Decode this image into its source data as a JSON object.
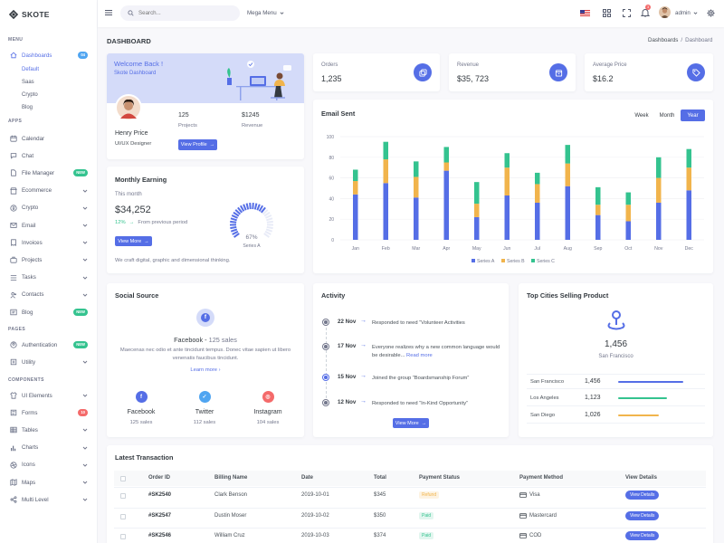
{
  "brand": {
    "name": "SKOTE"
  },
  "topbar": {
    "search_placeholder": "Search...",
    "mega_menu": "Mega Menu",
    "notification_count": "3",
    "user_name": "admin"
  },
  "sidebar": {
    "menu_title": "MENU",
    "apps_title": "APPS",
    "pages_title": "PAGES",
    "components_title": "COMPONENTS",
    "dashboards": {
      "label": "Dashboards",
      "badge": "04"
    },
    "dashboard_sub": [
      "Default",
      "Saas",
      "Crypto",
      "Blog"
    ],
    "apps": [
      {
        "label": "Calendar",
        "icon": "calendar-icon"
      },
      {
        "label": "Chat",
        "icon": "chat-icon"
      },
      {
        "label": "File Manager",
        "icon": "file-icon",
        "badge": "NEW"
      },
      {
        "label": "Ecommerce",
        "icon": "store-icon"
      },
      {
        "label": "Crypto",
        "icon": "bitcoin-icon"
      },
      {
        "label": "Email",
        "icon": "email-icon"
      },
      {
        "label": "Invoices",
        "icon": "invoice-icon"
      },
      {
        "label": "Projects",
        "icon": "briefcase-icon"
      },
      {
        "label": "Tasks",
        "icon": "tasks-icon"
      },
      {
        "label": "Contacts",
        "icon": "contacts-icon"
      },
      {
        "label": "Blog",
        "icon": "blog-icon",
        "badge": "NEW"
      }
    ],
    "pages": [
      {
        "label": "Authentication",
        "icon": "user-circle-icon",
        "badge": "NEW"
      },
      {
        "label": "Utility",
        "icon": "utility-icon"
      }
    ],
    "components": [
      {
        "label": "UI Elements",
        "icon": "tshirt-icon"
      },
      {
        "label": "Forms",
        "icon": "forms-icon",
        "badge": "10"
      },
      {
        "label": "Tables",
        "icon": "table-icon"
      },
      {
        "label": "Charts",
        "icon": "chart-icon"
      },
      {
        "label": "Icons",
        "icon": "aperture-icon"
      },
      {
        "label": "Maps",
        "icon": "map-icon"
      },
      {
        "label": "Multi Level",
        "icon": "share-icon"
      }
    ]
  },
  "page": {
    "title": "DASHBOARD",
    "breadcrumb": [
      "Dashboards",
      "Dashboard"
    ]
  },
  "welcome": {
    "heading": "Welcome Back !",
    "subheading": "Skote Dashboard",
    "name": "Henry Price",
    "role": "UI/UX Designer",
    "projects_value": "125",
    "projects_label": "Projects",
    "revenue_value": "$1245",
    "revenue_label": "Revenue",
    "button": "View Profile"
  },
  "monthly": {
    "title": "Monthly Earning",
    "this_month": "This month",
    "amount": "$34,252",
    "change": "12%",
    "from_prev": "From previous period",
    "button": "View More",
    "note": "We craft digital, graphic and dimensional thinking.",
    "gauge_value": "67%",
    "gauge_label": "Series A",
    "gauge_fraction": 0.67
  },
  "stats": [
    {
      "label": "Orders",
      "value": "1,235",
      "icon": "copy-icon"
    },
    {
      "label": "Revenue",
      "value": "$35, 723",
      "icon": "archive-icon"
    },
    {
      "label": "Average Price",
      "value": "$16.2",
      "icon": "tag-icon"
    }
  ],
  "email_chart": {
    "title": "Email Sent",
    "tabs": [
      "Week",
      "Month",
      "Year"
    ],
    "active_tab": "Year"
  },
  "chart_data": {
    "type": "bar",
    "stacked": true,
    "title": "Email Sent",
    "categories": [
      "Jan",
      "Feb",
      "Mar",
      "Apr",
      "May",
      "Jun",
      "Jul",
      "Aug",
      "Sep",
      "Oct",
      "Nov",
      "Dec"
    ],
    "series": [
      {
        "name": "Series A",
        "color": "#556ee6",
        "values": [
          44,
          55,
          41,
          67,
          22,
          43,
          36,
          52,
          24,
          18,
          36,
          48
        ]
      },
      {
        "name": "Series B",
        "color": "#f1b44c",
        "values": [
          13,
          23,
          20,
          8,
          13,
          27,
          18,
          22,
          10,
          16,
          24,
          22
        ]
      },
      {
        "name": "Series C",
        "color": "#34c38f",
        "values": [
          11,
          17,
          15,
          15,
          21,
          14,
          11,
          18,
          17,
          12,
          20,
          18
        ]
      }
    ],
    "y_ticks": [
      "0",
      "20",
      "40",
      "60",
      "80",
      "100"
    ],
    "ylim": [
      0,
      100
    ],
    "legend": "bottom-center"
  },
  "social": {
    "title": "Social Source",
    "heading": "Facebook",
    "heading_sales": "125 sales",
    "description": "Maecenas nec odio et ante tincidunt tempus. Donec vitae sapien ut libero venenatis faucibus tincidunt.",
    "learn_more": "Learn more",
    "items": [
      {
        "name": "Facebook",
        "sales": "125 sales",
        "color": "#556ee6"
      },
      {
        "name": "Twitter",
        "sales": "112 sales",
        "color": "#50a5f1"
      },
      {
        "name": "Instagram",
        "sales": "104 sales",
        "color": "#f46a6a"
      }
    ]
  },
  "activity": {
    "title": "Activity",
    "items": [
      {
        "date": "22 Nov",
        "text": "Responded to need “Volunteer Activities"
      },
      {
        "date": "17 Nov",
        "text": "Everyone realizes why a new common language would be desirable...",
        "link": "Read more"
      },
      {
        "date": "15 Nov",
        "text": "Joined the group “Boardsmanship Forum”"
      },
      {
        "date": "12 Nov",
        "text": "Responded to need “In-Kind Opportunity”"
      }
    ],
    "button": "View More"
  },
  "top_cities": {
    "title": "Top Cities Selling Product",
    "total": "1,456",
    "total_city": "San Francisco",
    "rows": [
      {
        "city": "San Francisco",
        "value": "1,456",
        "fraction": 0.8,
        "color": "#556ee6"
      },
      {
        "city": "Los Angeles",
        "value": "1,123",
        "fraction": 0.6,
        "color": "#34c38f"
      },
      {
        "city": "San Diego",
        "value": "1,026",
        "fraction": 0.5,
        "color": "#f1b44c"
      }
    ]
  },
  "transactions": {
    "title": "Latest Transaction",
    "headers": [
      "Order ID",
      "Billing Name",
      "Date",
      "Total",
      "Payment Status",
      "Payment Method",
      "View Details"
    ],
    "rows": [
      {
        "id": "#SK2540",
        "name": "Clark Benson",
        "date": "2019-10-01",
        "total": "$345",
        "status": "Refund",
        "status_type": "warning",
        "method": "Visa",
        "button": "View Details"
      },
      {
        "id": "#SK2547",
        "name": "Dustin Moser",
        "date": "2019-10-02",
        "total": "$350",
        "status": "Paid",
        "status_type": "success",
        "method": "Mastercard",
        "button": "View Details"
      },
      {
        "id": "#SK2546",
        "name": "William Cruz",
        "date": "2019-10-03",
        "total": "$374",
        "status": "Paid",
        "status_type": "success",
        "method": "COD",
        "button": "View Details"
      }
    ]
  }
}
